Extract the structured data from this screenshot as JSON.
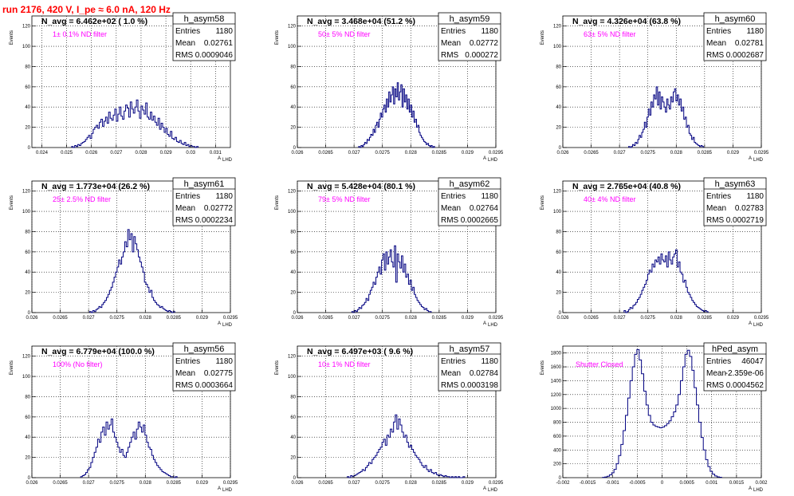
{
  "page_title": "run 2176,   420 V, I_pe ≈ 6.0 nA, 120 Hz",
  "colors": {
    "title": "#ff0000",
    "filter_label": "#ff00ff",
    "histogram": "#000080",
    "grid": "#000000"
  },
  "chart_data": [
    {
      "type": "histogram",
      "name": "h_asym58",
      "entries": "1180",
      "mean": "0.02761",
      "rms": "0.0009046",
      "n_avg_label": "N_avg = 6.462e+02 ( 1.0 %)",
      "filter_label": "1± 0.1% ND filter",
      "xlabel": "A",
      "xlabel_sub": "LHD",
      "ylabel": "Events",
      "grid": true,
      "xlim": [
        0.0236,
        0.0316
      ],
      "ylim": [
        0,
        130
      ],
      "xticks": [
        0.024,
        0.025,
        0.026,
        0.027,
        0.028,
        0.029,
        0.03,
        0.031
      ],
      "xtick_labels": [
        "0.024",
        "0.025",
        "0.026",
        "0.027",
        "0.028",
        "0.029",
        "0.03",
        "0.031"
      ],
      "yticks": [
        0,
        20,
        40,
        60,
        80,
        100,
        120
      ],
      "ytick_labels": [
        "0",
        "20",
        "40",
        "60",
        "80",
        "100",
        "120"
      ],
      "bins_x0": 0.0252,
      "bins_x1": 0.0303,
      "counts": [
        1,
        0,
        2,
        1,
        3,
        2,
        4,
        5,
        6,
        8,
        10,
        12,
        9,
        14,
        18,
        20,
        22,
        19,
        25,
        28,
        21,
        26,
        30,
        24,
        35,
        29,
        27,
        32,
        38,
        26,
        33,
        40,
        31,
        28,
        36,
        42,
        39,
        30,
        45,
        38,
        34,
        40,
        47,
        36,
        29,
        41,
        37,
        33,
        44,
        30,
        28,
        35,
        27,
        31,
        25,
        22,
        29,
        18,
        24,
        20,
        15,
        19,
        13,
        11,
        16,
        9,
        8,
        10,
        6,
        5,
        7,
        4,
        3,
        5,
        2,
        3,
        1,
        2,
        1,
        1,
        0,
        1
      ]
    },
    {
      "type": "histogram",
      "name": "h_asym59",
      "entries": "1180",
      "mean": "0.02772",
      "rms": "0.000272",
      "n_avg_label": "N_avg = 3.468e+04 (51.2 %)",
      "filter_label": "50± 5% ND filter",
      "xlabel": "A",
      "xlabel_sub": "LHD",
      "ylabel": "Events",
      "grid": true,
      "xlim": [
        0.026,
        0.0295
      ],
      "ylim": [
        0,
        130
      ],
      "xticks": [
        0.026,
        0.0265,
        0.027,
        0.0275,
        0.028,
        0.0285,
        0.029,
        0.0295
      ],
      "xtick_labels": [
        "0.026",
        "0.0265",
        "0.027",
        "0.0275",
        "0.028",
        "0.0285",
        "0.029",
        "0.0295"
      ],
      "yticks": [
        0,
        20,
        40,
        60,
        80,
        100,
        120
      ],
      "ytick_labels": [
        "0",
        "20",
        "40",
        "60",
        "80",
        "100",
        "120"
      ],
      "bins_x0": 0.02708,
      "bins_x1": 0.02842,
      "counts": [
        1,
        0,
        2,
        1,
        3,
        5,
        4,
        8,
        7,
        10,
        13,
        12,
        18,
        15,
        22,
        25,
        20,
        28,
        34,
        30,
        38,
        42,
        35,
        48,
        40,
        55,
        45,
        52,
        60,
        43,
        58,
        50,
        64,
        47,
        55,
        62,
        40,
        58,
        45,
        52,
        38,
        48,
        35,
        42,
        30,
        36,
        25,
        28,
        20,
        22,
        15,
        12,
        10,
        8,
        6,
        5,
        3,
        4,
        2,
        1,
        2,
        0,
        1
      ]
    },
    {
      "type": "histogram",
      "name": "h_asym60",
      "entries": "1180",
      "mean": "0.02781",
      "rms": "0.0002687",
      "n_avg_label": "N_avg = 4.326e+04 (63.8 %)",
      "filter_label": "63± 5% ND filter",
      "xlabel": "A",
      "xlabel_sub": "LHD",
      "ylabel": "Events",
      "grid": true,
      "xlim": [
        0.026,
        0.0295
      ],
      "ylim": [
        0,
        130
      ],
      "xticks": [
        0.026,
        0.0265,
        0.027,
        0.0275,
        0.028,
        0.0285,
        0.029,
        0.0295
      ],
      "xtick_labels": [
        "0.026",
        "0.0265",
        "0.027",
        "0.0275",
        "0.028",
        "0.0285",
        "0.029",
        "0.0295"
      ],
      "yticks": [
        0,
        20,
        40,
        60,
        80,
        100,
        120
      ],
      "ytick_labels": [
        "0",
        "20",
        "40",
        "60",
        "80",
        "100",
        "120"
      ],
      "bins_x0": 0.02716,
      "bins_x1": 0.02848,
      "counts": [
        1,
        0,
        1,
        3,
        2,
        5,
        4,
        8,
        12,
        10,
        15,
        18,
        25,
        20,
        30,
        38,
        32,
        45,
        40,
        52,
        48,
        60,
        42,
        55,
        38,
        50,
        45,
        40,
        35,
        48,
        42,
        38,
        50,
        45,
        55,
        58,
        46,
        52,
        42,
        48,
        36,
        40,
        28,
        30,
        20,
        22,
        14,
        12,
        8,
        10,
        5,
        4,
        3,
        2,
        1,
        2,
        1
      ]
    },
    {
      "type": "histogram",
      "name": "h_asym61",
      "entries": "1180",
      "mean": "0.02772",
      "rms": "0.0002234",
      "n_avg_label": "N_avg = 1.773e+04 (26.2 %)",
      "filter_label": "25± 2.5% ND filter",
      "xlabel": "A",
      "xlabel_sub": "LHD",
      "ylabel": "Events",
      "grid": true,
      "xlim": [
        0.026,
        0.0295
      ],
      "ylim": [
        0,
        130
      ],
      "xticks": [
        0.026,
        0.0265,
        0.027,
        0.0275,
        0.028,
        0.0285,
        0.029,
        0.0295
      ],
      "xtick_labels": [
        "0.026",
        "0.0265",
        "0.027",
        "0.0275",
        "0.028",
        "0.0285",
        "0.029",
        "0.0295"
      ],
      "yticks": [
        0,
        20,
        40,
        60,
        80,
        100,
        120
      ],
      "ytick_labels": [
        "0",
        "20",
        "40",
        "60",
        "80",
        "100",
        "120"
      ],
      "bins_x0": 0.02702,
      "bins_x1": 0.02852,
      "counts": [
        1,
        0,
        2,
        1,
        3,
        4,
        6,
        5,
        8,
        10,
        12,
        15,
        18,
        22,
        25,
        30,
        35,
        40,
        45,
        52,
        48,
        55,
        60,
        70,
        65,
        82,
        72,
        78,
        60,
        75,
        68,
        62,
        55,
        50,
        45,
        40,
        30,
        28,
        25,
        20,
        22,
        15,
        12,
        10,
        8,
        7,
        5,
        6,
        4,
        3,
        2,
        1,
        2,
        1,
        0,
        1
      ]
    },
    {
      "type": "histogram",
      "name": "h_asym62",
      "entries": "1180",
      "mean": "0.02764",
      "rms": "0.0002665",
      "n_avg_label": "N_avg = 5.428e+04 (80.1 %)",
      "filter_label": "79± 5% ND filter",
      "xlabel": "A",
      "xlabel_sub": "LHD",
      "ylabel": "Events",
      "grid": true,
      "xlim": [
        0.026,
        0.0295
      ],
      "ylim": [
        0,
        130
      ],
      "xticks": [
        0.026,
        0.0265,
        0.027,
        0.0275,
        0.028,
        0.0285,
        0.029,
        0.0295
      ],
      "xtick_labels": [
        "0.026",
        "0.0265",
        "0.027",
        "0.0275",
        "0.028",
        "0.0285",
        "0.029",
        "0.0295"
      ],
      "yticks": [
        0,
        20,
        40,
        60,
        80,
        100,
        120
      ],
      "ytick_labels": [
        "0",
        "20",
        "40",
        "60",
        "80",
        "100",
        "120"
      ],
      "bins_x0": 0.02696,
      "bins_x1": 0.02836,
      "counts": [
        1,
        0,
        2,
        1,
        3,
        5,
        4,
        7,
        8,
        10,
        14,
        12,
        18,
        22,
        25,
        30,
        28,
        35,
        40,
        45,
        38,
        52,
        58,
        42,
        60,
        48,
        55,
        62,
        50,
        45,
        66,
        30,
        58,
        50,
        44,
        56,
        40,
        48,
        35,
        38,
        28,
        32,
        22,
        25,
        18,
        15,
        12,
        10,
        8,
        6,
        5,
        3,
        4,
        2,
        1,
        1
      ]
    },
    {
      "type": "histogram",
      "name": "h_asym63",
      "entries": "1180",
      "mean": "0.02783",
      "rms": "0.0002719",
      "n_avg_label": "N_avg = 2.765e+04 (40.8 %)",
      "filter_label": "40± 4% ND filter",
      "xlabel": "A",
      "xlabel_sub": "LHD",
      "ylabel": "Events",
      "grid": true,
      "xlim": [
        0.026,
        0.0295
      ],
      "ylim": [
        0,
        130
      ],
      "xticks": [
        0.026,
        0.0265,
        0.027,
        0.0275,
        0.028,
        0.0285,
        0.029,
        0.0295
      ],
      "xtick_labels": [
        "0.026",
        "0.0265",
        "0.027",
        "0.0275",
        "0.028",
        "0.0285",
        "0.029",
        "0.0295"
      ],
      "yticks": [
        0,
        20,
        40,
        60,
        80,
        100,
        120
      ],
      "ytick_labels": [
        "0",
        "20",
        "40",
        "60",
        "80",
        "100",
        "120"
      ],
      "bins_x0": 0.02708,
      "bins_x1": 0.02856,
      "counts": [
        2,
        0,
        1,
        3,
        5,
        4,
        7,
        8,
        10,
        13,
        15,
        18,
        22,
        25,
        28,
        32,
        38,
        42,
        40,
        48,
        45,
        52,
        50,
        55,
        48,
        58,
        52,
        50,
        56,
        45,
        60,
        52,
        48,
        55,
        58,
        62,
        45,
        50,
        40,
        38,
        30,
        32,
        25,
        20,
        18,
        15,
        12,
        10,
        8,
        6,
        5,
        4,
        3,
        2,
        1,
        2,
        1
      ]
    },
    {
      "type": "histogram",
      "name": "h_asym56",
      "entries": "1180",
      "mean": "0.02775",
      "rms": "0.0003664",
      "n_avg_label": "N_avg = 6.779e+04 (100.0 %)",
      "filter_label": "100% (No filter)",
      "xlabel": "A",
      "xlabel_sub": "LHD",
      "ylabel": "Events",
      "grid": true,
      "xlim": [
        0.026,
        0.0295
      ],
      "ylim": [
        0,
        130
      ],
      "xticks": [
        0.026,
        0.0265,
        0.027,
        0.0275,
        0.028,
        0.0285,
        0.029,
        0.0295
      ],
      "xtick_labels": [
        "0.026",
        "0.0265",
        "0.027",
        "0.0275",
        "0.028",
        "0.0285",
        "0.029",
        "0.0295"
      ],
      "yticks": [
        0,
        20,
        40,
        60,
        80,
        100,
        120
      ],
      "ytick_labels": [
        "0",
        "20",
        "40",
        "60",
        "80",
        "100",
        "120"
      ],
      "bins_x0": 0.02686,
      "bins_x1": 0.02856,
      "counts": [
        1,
        2,
        3,
        5,
        8,
        10,
        15,
        20,
        25,
        30,
        38,
        35,
        45,
        50,
        42,
        55,
        48,
        52,
        58,
        45,
        40,
        35,
        30,
        25,
        28,
        22,
        20,
        25,
        30,
        35,
        40,
        45,
        38,
        48,
        55,
        50,
        45,
        52,
        42,
        35,
        30,
        28,
        22,
        18,
        15,
        12,
        10,
        8,
        6,
        5,
        4,
        3,
        2,
        1,
        1,
        0,
        1
      ]
    },
    {
      "type": "histogram",
      "name": "h_asym57",
      "entries": "1180",
      "mean": "0.02784",
      "rms": "0.0003198",
      "n_avg_label": "N_avg = 6.497e+03 ( 9.6 %)",
      "filter_label": "10± 1% ND filter",
      "xlabel": "A",
      "xlabel_sub": "LHD",
      "ylabel": "Events",
      "grid": true,
      "xlim": [
        0.026,
        0.0295
      ],
      "ylim": [
        0,
        130
      ],
      "xticks": [
        0.026,
        0.0265,
        0.027,
        0.0275,
        0.028,
        0.0285,
        0.029,
        0.0295
      ],
      "xtick_labels": [
        "0.026",
        "0.0265",
        "0.027",
        "0.0275",
        "0.028",
        "0.0285",
        "0.029",
        "0.0295"
      ],
      "yticks": [
        0,
        20,
        40,
        60,
        80,
        100,
        120
      ],
      "ytick_labels": [
        "0",
        "20",
        "40",
        "60",
        "80",
        "100",
        "120"
      ],
      "bins_x0": 0.02688,
      "bins_x1": 0.02895,
      "counts": [
        1,
        0,
        2,
        1,
        2,
        3,
        4,
        5,
        6,
        8,
        7,
        10,
        12,
        15,
        14,
        18,
        20,
        22,
        25,
        28,
        30,
        35,
        38,
        32,
        42,
        40,
        48,
        45,
        55,
        62,
        48,
        58,
        52,
        45,
        40,
        42,
        35,
        30,
        32,
        28,
        25,
        22,
        20,
        18,
        15,
        12,
        10,
        12,
        8,
        6,
        8,
        5,
        4,
        5,
        3,
        2,
        3,
        2,
        1,
        2,
        1,
        1,
        0,
        1,
        0,
        1,
        0,
        1,
        0,
        0,
        1
      ]
    },
    {
      "type": "histogram",
      "name": "hPed_asym",
      "entries": "46047",
      "mean": "-2.359e-06",
      "rms": "0.0004562",
      "n_avg_label": "",
      "filter_label": "Shutter Closed",
      "xlabel": "A",
      "xlabel_sub": "LHD",
      "ylabel": "Events",
      "grid": true,
      "xlim": [
        -0.002,
        0.002
      ],
      "ylim": [
        0,
        1900
      ],
      "xticks": [
        -0.002,
        -0.0015,
        -0.001,
        -0.0005,
        0,
        0.0005,
        0.001,
        0.0015,
        0.002
      ],
      "xtick_labels": [
        "-0.002",
        "-0.0015",
        "-0.001",
        "-0.0005",
        "0",
        "0.0005",
        "0.001",
        "0.0015",
        "0.002"
      ],
      "yticks": [
        0,
        200,
        400,
        600,
        800,
        1000,
        1200,
        1400,
        1600,
        1800
      ],
      "ytick_labels": [
        "0",
        "200",
        "400",
        "600",
        "800",
        "1000",
        "1200",
        "1400",
        "1600",
        "1800"
      ],
      "bins_x0": -0.0012,
      "bins_x1": 0.0012,
      "counts": [
        5,
        10,
        20,
        40,
        70,
        120,
        200,
        320,
        480,
        680,
        900,
        1150,
        1400,
        1600,
        1780,
        1850,
        1700,
        1500,
        1250,
        1050,
        900,
        800,
        760,
        740,
        730,
        720,
        730,
        750,
        780,
        820,
        880,
        950,
        1050,
        1200,
        1400,
        1600,
        1780,
        1840,
        1750,
        1550,
        1300,
        1050,
        800,
        580,
        400,
        260,
        160,
        90,
        50,
        25,
        12,
        6
      ]
    }
  ]
}
